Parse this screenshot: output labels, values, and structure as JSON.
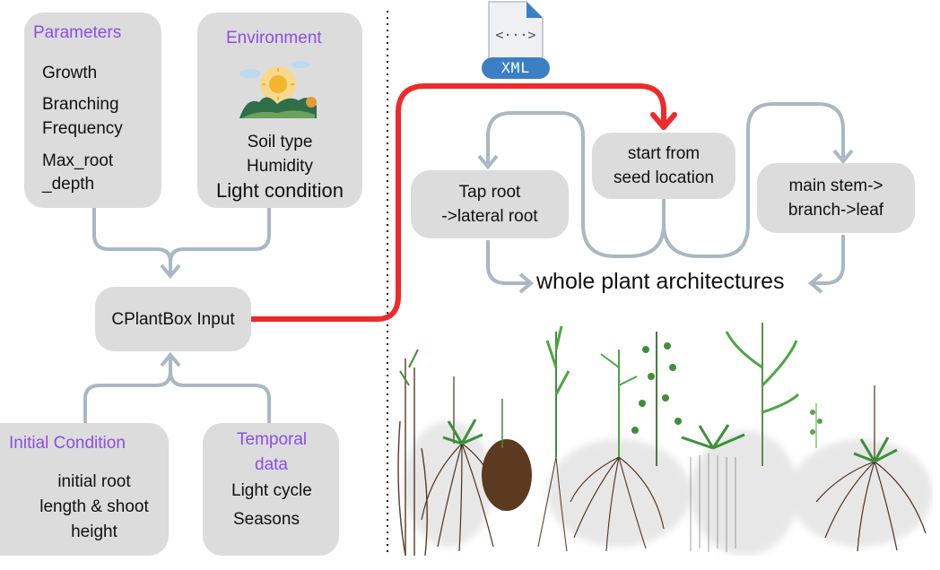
{
  "parameters": {
    "title": "Parameters",
    "items": [
      "Growth",
      "Branching",
      "Frequency",
      "Max_root",
      "_depth"
    ]
  },
  "environment": {
    "title": "Environment",
    "items": [
      "Soil type",
      "Humidity",
      "Light condition"
    ]
  },
  "input": {
    "label": "CPlantBox Input"
  },
  "initial": {
    "title": "Initial Condition",
    "items": [
      "initial root",
      "length & shoot",
      "height"
    ]
  },
  "temporal": {
    "title_line1": "Temporal",
    "title_line2": "data",
    "items": [
      "Light cycle",
      "Seasons"
    ]
  },
  "xml": {
    "label": "XML",
    "glyph": "<···>"
  },
  "seed": {
    "line1": "start from",
    "line2": "seed location"
  },
  "taproot": {
    "line1": "Tap root",
    "line2": "->lateral root"
  },
  "stem": {
    "line1": "main stem->",
    "line2": "branch->leaf"
  },
  "whole": {
    "label": "whole plant architectures"
  },
  "colors": {
    "box": "#dcdcdc",
    "title": "#8a4fe0",
    "connector": "#a9b8c2",
    "xml_path": "#ee2a2a",
    "xml_badge": "#3b7fc4"
  }
}
